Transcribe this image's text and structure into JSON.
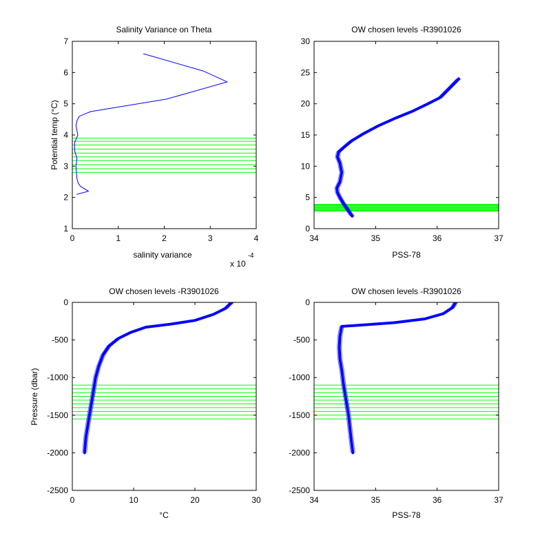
{
  "figure": {
    "background": "#ffffff",
    "line_color": "#0000ff",
    "level_color": "#00ff00"
  },
  "chart_data": [
    {
      "id": "p1",
      "type": "line",
      "title": "Salinity Variance on Theta",
      "xlabel": "salinity variance",
      "ylabel": "Potential temp (°C)",
      "xlim": [
        0,
        0.0004
      ],
      "ylim": [
        1,
        7
      ],
      "xticks": [
        0,
        0.0001,
        0.0002,
        0.0003,
        0.0004
      ],
      "xtick_labels": [
        "0",
        "1",
        "2",
        "3",
        "4"
      ],
      "x_exponent_label": "x 10",
      "x_exponent_power": "-4",
      "yticks": [
        1,
        2,
        3,
        4,
        5,
        6,
        7
      ],
      "ytick_labels": [
        "1",
        "2",
        "3",
        "4",
        "5",
        "6",
        "7"
      ],
      "series": [
        {
          "x": [
            0.000155,
            0.000285,
            0.000337,
            0.000205,
            4e-05,
            1.5e-05,
            1e-05,
            8e-06,
            1.2e-05,
            5e-06,
            5e-06,
            1e-05,
            8e-06,
            9e-06,
            1e-05,
            1.3e-05,
            1.8e-05,
            3.5e-05,
            1e-05
          ],
          "y": [
            6.6,
            6.05,
            5.7,
            5.15,
            4.75,
            4.6,
            4.45,
            4.3,
            4.0,
            3.75,
            3.5,
            3.25,
            3.0,
            2.8,
            2.6,
            2.45,
            2.35,
            2.2,
            2.1
          ]
        }
      ],
      "hlines": [
        2.8,
        2.92,
        3.05,
        3.18,
        3.3,
        3.42,
        3.55,
        3.68,
        3.8,
        3.9
      ]
    },
    {
      "id": "p2",
      "type": "line",
      "title": "OW chosen levels -R3901026",
      "xlabel": "PSS-78",
      "ylabel": "",
      "xlim": [
        34,
        37
      ],
      "ylim": [
        0,
        30
      ],
      "xticks": [
        34,
        35,
        36,
        37
      ],
      "xtick_labels": [
        "34",
        "35",
        "36",
        "37"
      ],
      "yticks": [
        0,
        5,
        10,
        15,
        20,
        25,
        30
      ],
      "ytick_labels": [
        "0",
        "5",
        "10",
        "15",
        "20",
        "25",
        "30"
      ],
      "series": [
        {
          "x": [
            34.62,
            34.55,
            34.48,
            34.42,
            34.38,
            34.37,
            34.42,
            34.45,
            34.42,
            34.38,
            34.4,
            34.48,
            34.6,
            34.8,
            35.05,
            35.3,
            35.6,
            35.85,
            36.05,
            36.15,
            36.25,
            36.35
          ],
          "y": [
            2.0,
            3.0,
            4.0,
            5.0,
            5.8,
            6.5,
            7.5,
            9.0,
            10.5,
            11.5,
            12.3,
            13.0,
            14.0,
            15.2,
            16.5,
            17.6,
            18.8,
            20.0,
            21.0,
            22.0,
            23.0,
            24.0
          ]
        }
      ],
      "hlines": [
        2.8,
        2.92,
        3.05,
        3.18,
        3.3,
        3.42,
        3.55,
        3.68,
        3.8,
        3.9
      ]
    },
    {
      "id": "p3",
      "type": "line",
      "title": "OW chosen levels -R3901026",
      "xlabel": "°C",
      "ylabel": "Pressure (dbar)",
      "xlim": [
        0,
        30
      ],
      "ylim": [
        -2500,
        0
      ],
      "xticks": [
        0,
        10,
        20,
        30
      ],
      "xtick_labels": [
        "0",
        "10",
        "20",
        "30"
      ],
      "yticks": [
        -2500,
        -2000,
        -1500,
        -1000,
        -500,
        0
      ],
      "ytick_labels": [
        "-2500",
        "-2000",
        "-1500",
        "-1000",
        "-500",
        "0"
      ],
      "series": [
        {
          "x": [
            2.0,
            2.2,
            2.6,
            3.0,
            3.4,
            3.8,
            4.3,
            5.0,
            6.0,
            7.5,
            9.5,
            12.0,
            16.0,
            20.0,
            23.0,
            25.0,
            26.0
          ],
          "y": [
            -2000,
            -1800,
            -1600,
            -1400,
            -1200,
            -1000,
            -850,
            -700,
            -580,
            -480,
            -400,
            -330,
            -290,
            -240,
            -160,
            -80,
            0
          ]
        }
      ],
      "hlines": [
        -1100,
        -1150,
        -1200,
        -1250,
        -1300,
        -1350,
        -1400,
        -1450,
        -1500,
        -1550
      ]
    },
    {
      "id": "p4",
      "type": "line",
      "title": "OW chosen levels -R3901026",
      "xlabel": "PSS-78",
      "ylabel": "",
      "xlim": [
        34,
        37
      ],
      "ylim": [
        -2500,
        0
      ],
      "xticks": [
        34,
        35,
        36,
        37
      ],
      "xtick_labels": [
        "34",
        "35",
        "36",
        "37"
      ],
      "yticks": [
        -2500,
        -2000,
        -1500,
        -1000,
        -500,
        0
      ],
      "ytick_labels": [
        "-2500",
        "-2000",
        "-1500",
        "-1000",
        "-500",
        "0"
      ],
      "series": [
        {
          "x": [
            34.63,
            34.6,
            34.56,
            34.52,
            34.48,
            34.45,
            34.42,
            34.41,
            34.42,
            34.45,
            34.8,
            35.3,
            35.8,
            36.1,
            36.25,
            36.3
          ],
          "y": [
            -2000,
            -1800,
            -1500,
            -1300,
            -1100,
            -900,
            -750,
            -600,
            -450,
            -320,
            -300,
            -270,
            -220,
            -150,
            -70,
            0
          ]
        }
      ],
      "hlines": [
        -1100,
        -1150,
        -1200,
        -1250,
        -1300,
        -1350,
        -1400,
        -1450,
        -1500,
        -1550
      ]
    }
  ]
}
